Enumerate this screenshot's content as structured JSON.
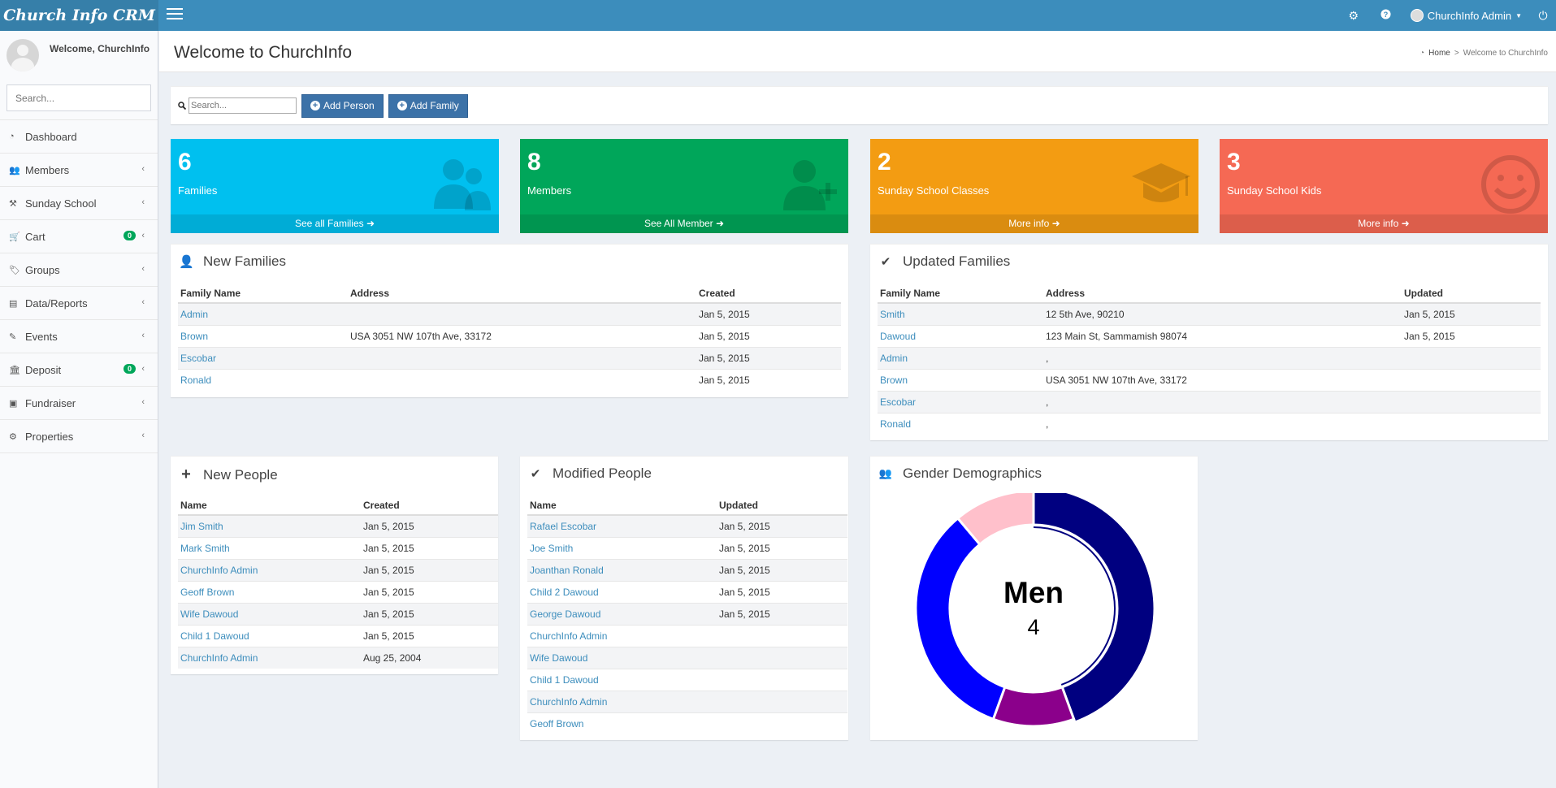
{
  "app": {
    "logo": "Church Info CRM"
  },
  "topbar": {
    "user_name": "ChurchInfo Admin"
  },
  "sidebar": {
    "welcome": "Welcome, ChurchInfo",
    "search_placeholder": "Search...",
    "items": [
      {
        "label": "Dashboard",
        "icon": "dashboard-icon"
      },
      {
        "label": "Members",
        "icon": "users-icon"
      },
      {
        "label": "Sunday School",
        "icon": "stamp-icon"
      },
      {
        "label": "Cart",
        "icon": "cart-icon",
        "badge": "0"
      },
      {
        "label": "Groups",
        "icon": "tag-icon"
      },
      {
        "label": "Data/Reports",
        "icon": "file-icon"
      },
      {
        "label": "Events",
        "icon": "ticket-icon"
      },
      {
        "label": "Deposit",
        "icon": "bank-icon",
        "badge": "0"
      },
      {
        "label": "Fundraiser",
        "icon": "money-icon"
      },
      {
        "label": "Properties",
        "icon": "cogs-icon"
      }
    ]
  },
  "header": {
    "title": "Welcome to ChurchInfo",
    "breadcrumb_home": "Home",
    "breadcrumb_current": "Welcome to ChurchInfo"
  },
  "quickbar": {
    "search_placeholder": "Search...",
    "add_person": "Add Person",
    "add_family": "Add Family"
  },
  "stats": [
    {
      "value": "6",
      "label": "Families",
      "link": "See all Families",
      "color": "#00c0ef",
      "icon": "users-icon"
    },
    {
      "value": "8",
      "label": "Members",
      "link": "See All Member",
      "color": "#00a65a",
      "icon": "user-plus-icon"
    },
    {
      "value": "2",
      "label": "Sunday School Classes",
      "link": "More info",
      "color": "#f39c12",
      "icon": "graduation-cap-icon"
    },
    {
      "value": "3",
      "label": "Sunday School Kids",
      "link": "More info",
      "color": "#f56954",
      "icon": "smile-icon"
    }
  ],
  "new_families": {
    "title": "New Families",
    "headers": [
      "Family Name",
      "Address",
      "Created"
    ],
    "rows": [
      {
        "name": "Admin",
        "address": "",
        "created": "Jan 5, 2015"
      },
      {
        "name": "Brown",
        "address": "USA 3051 NW 107th Ave, 33172",
        "created": "Jan 5, 2015"
      },
      {
        "name": "Escobar",
        "address": "",
        "created": "Jan 5, 2015"
      },
      {
        "name": "Ronald",
        "address": "",
        "created": "Jan 5, 2015"
      }
    ]
  },
  "updated_families": {
    "title": "Updated Families",
    "headers": [
      "Family Name",
      "Address",
      "Updated"
    ],
    "rows": [
      {
        "name": "Smith",
        "address": "12 5th Ave, 90210",
        "updated": "Jan 5, 2015"
      },
      {
        "name": "Dawoud",
        "address": "123 Main St, Sammamish 98074",
        "updated": "Jan 5, 2015"
      },
      {
        "name": "Admin",
        "address": ",",
        "updated": ""
      },
      {
        "name": "Brown",
        "address": "USA 3051 NW 107th Ave, 33172",
        "updated": ""
      },
      {
        "name": "Escobar",
        "address": ",",
        "updated": ""
      },
      {
        "name": "Ronald",
        "address": ",",
        "updated": ""
      }
    ]
  },
  "new_people": {
    "title": "New People",
    "headers": [
      "Name",
      "Created"
    ],
    "rows": [
      {
        "name": "Jim Smith",
        "created": "Jan 5, 2015"
      },
      {
        "name": "Mark Smith",
        "created": "Jan 5, 2015"
      },
      {
        "name": "ChurchInfo Admin",
        "created": "Jan 5, 2015"
      },
      {
        "name": "Geoff Brown",
        "created": "Jan 5, 2015"
      },
      {
        "name": "Wife Dawoud",
        "created": "Jan 5, 2015"
      },
      {
        "name": "Child 1 Dawoud",
        "created": "Jan 5, 2015"
      },
      {
        "name": "ChurchInfo Admin",
        "created": "Aug 25, 2004"
      }
    ]
  },
  "modified_people": {
    "title": "Modified People",
    "headers": [
      "Name",
      "Updated"
    ],
    "rows": [
      {
        "name": "Rafael Escobar",
        "updated": "Jan 5, 2015"
      },
      {
        "name": "Joe Smith",
        "updated": "Jan 5, 2015"
      },
      {
        "name": "Joanthan Ronald",
        "updated": "Jan 5, 2015"
      },
      {
        "name": "Child 2 Dawoud",
        "updated": "Jan 5, 2015"
      },
      {
        "name": "George Dawoud",
        "updated": "Jan 5, 2015"
      },
      {
        "name": "ChurchInfo Admin",
        "updated": ""
      },
      {
        "name": "Wife Dawoud",
        "updated": ""
      },
      {
        "name": "Child 1 Dawoud",
        "updated": ""
      },
      {
        "name": "ChurchInfo Admin",
        "updated": ""
      },
      {
        "name": "Geoff Brown",
        "updated": ""
      }
    ]
  },
  "gender": {
    "title": "Gender Demographics",
    "center_label": "Men",
    "center_value": "4",
    "segments": [
      {
        "value": 4,
        "color": "#000080"
      },
      {
        "value": 1,
        "color": "#8b008b"
      },
      {
        "value": 3,
        "color": "#0000ff"
      },
      {
        "value": 1,
        "color": "#ffc0cb"
      }
    ]
  }
}
